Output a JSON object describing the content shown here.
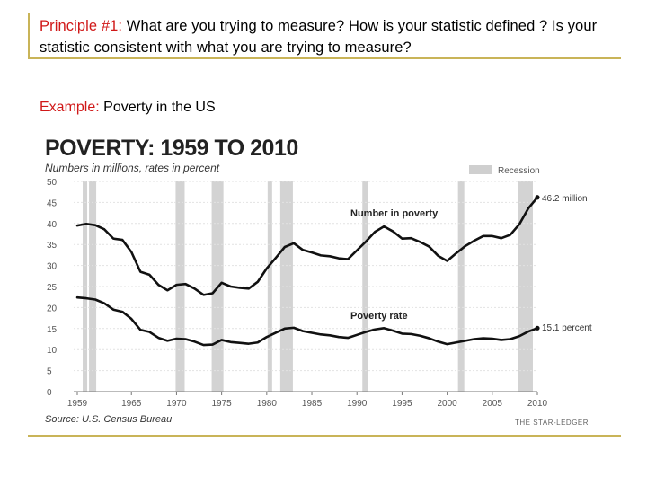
{
  "slide": {
    "principle_label": "Principle #1:",
    "principle_text": " What are you trying to measure? How is your statistic defined ? Is your statistic consistent with what you are trying to measure?",
    "example_label": "Example:",
    "example_text": " Poverty in the US"
  },
  "chart_data": {
    "type": "line",
    "title": "POVERTY: 1959 TO 2010",
    "subtitle": "Numbers in millions, rates in percent",
    "legend": "Recession",
    "legend_position": "top-right",
    "source": "Source: U.S. Census Bureau",
    "credit": "THE STAR-LEDGER",
    "xlim": [
      1959,
      2010
    ],
    "ylim": [
      0,
      50
    ],
    "x_ticks": [
      "1959",
      "1965",
      "1970",
      "1975",
      "1980",
      "1985",
      "1990",
      "1995",
      "2000",
      "2005",
      "2010"
    ],
    "x_tick_values": [
      1959,
      1965,
      1970,
      1975,
      1980,
      1985,
      1990,
      1995,
      2000,
      2005,
      2010
    ],
    "y_ticks": [
      0,
      5,
      10,
      15,
      20,
      25,
      30,
      35,
      40,
      45,
      50
    ],
    "recessions": [
      [
        1959.6,
        1960.1
      ],
      [
        1960.3,
        1961.1
      ],
      [
        1969.9,
        1970.9
      ],
      [
        1973.9,
        1975.2
      ],
      [
        1980.1,
        1980.6
      ],
      [
        1981.5,
        1982.9
      ],
      [
        1990.6,
        1991.2
      ],
      [
        2001.2,
        2001.9
      ],
      [
        2007.9,
        2009.5
      ]
    ],
    "series": [
      {
        "name": "Number in poverty",
        "end_label": "46.2 million",
        "x": [
          1959,
          1960,
          1961,
          1962,
          1963,
          1964,
          1965,
          1966,
          1967,
          1968,
          1969,
          1970,
          1971,
          1972,
          1973,
          1974,
          1975,
          1976,
          1977,
          1978,
          1979,
          1980,
          1981,
          1982,
          1983,
          1984,
          1985,
          1986,
          1987,
          1988,
          1989,
          1990,
          1991,
          1992,
          1993,
          1994,
          1995,
          1996,
          1997,
          1998,
          1999,
          2000,
          2001,
          2002,
          2003,
          2004,
          2005,
          2006,
          2007,
          2008,
          2009,
          2010
        ],
        "values": [
          39.5,
          39.9,
          39.6,
          38.6,
          36.4,
          36.1,
          33.2,
          28.5,
          27.8,
          25.4,
          24.1,
          25.4,
          25.6,
          24.5,
          23.0,
          23.4,
          25.9,
          25.0,
          24.7,
          24.5,
          26.1,
          29.3,
          31.8,
          34.4,
          35.3,
          33.7,
          33.1,
          32.4,
          32.2,
          31.7,
          31.5,
          33.6,
          35.7,
          38.0,
          39.3,
          38.1,
          36.4,
          36.5,
          35.6,
          34.5,
          32.3,
          31.1,
          32.9,
          34.6,
          35.9,
          37.0,
          37.0,
          36.5,
          37.3,
          39.8,
          43.6,
          46.2
        ]
      },
      {
        "name": "Poverty rate",
        "end_label": "15.1 percent",
        "x": [
          1959,
          1960,
          1961,
          1962,
          1963,
          1964,
          1965,
          1966,
          1967,
          1968,
          1969,
          1970,
          1971,
          1972,
          1973,
          1974,
          1975,
          1976,
          1977,
          1978,
          1979,
          1980,
          1981,
          1982,
          1983,
          1984,
          1985,
          1986,
          1987,
          1988,
          1989,
          1990,
          1991,
          1992,
          1993,
          1994,
          1995,
          1996,
          1997,
          1998,
          1999,
          2000,
          2001,
          2002,
          2003,
          2004,
          2005,
          2006,
          2007,
          2008,
          2009,
          2010
        ],
        "values": [
          22.4,
          22.2,
          21.9,
          21.0,
          19.5,
          19.0,
          17.3,
          14.7,
          14.2,
          12.8,
          12.1,
          12.6,
          12.5,
          11.9,
          11.1,
          11.2,
          12.3,
          11.8,
          11.6,
          11.4,
          11.7,
          13.0,
          14.0,
          15.0,
          15.2,
          14.4,
          14.0,
          13.6,
          13.4,
          13.0,
          12.8,
          13.5,
          14.2,
          14.8,
          15.1,
          14.5,
          13.8,
          13.7,
          13.3,
          12.7,
          11.9,
          11.3,
          11.7,
          12.1,
          12.5,
          12.7,
          12.6,
          12.3,
          12.5,
          13.2,
          14.3,
          15.1
        ]
      }
    ]
  }
}
